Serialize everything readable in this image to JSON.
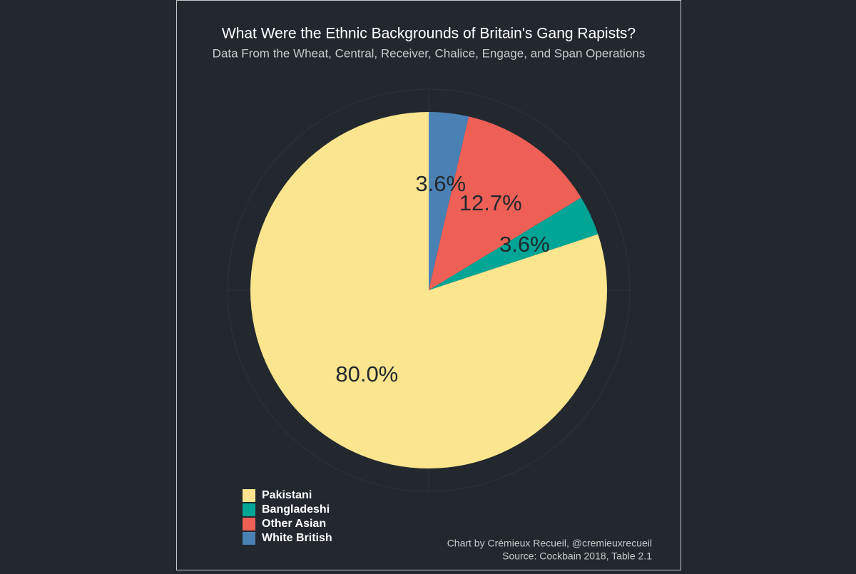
{
  "chart_data": {
    "type": "pie",
    "title": "What Were the Ethnic Backgrounds of Britain's Gang Rapists?",
    "subtitle": "Data From the Wheat, Central, Receiver, Chalice, Engage, and Span Operations",
    "categories": [
      "Pakistani",
      "Bangladeshi",
      "Other Asian",
      "White British"
    ],
    "values": [
      80.0,
      3.6,
      12.7,
      3.6
    ],
    "value_labels": [
      "80.0%",
      "3.6%",
      "12.7%",
      "3.6%"
    ],
    "colors": [
      "#fbe58e",
      "#00a595",
      "#ee6055",
      "#4a81b4"
    ],
    "legend": "bottom-left",
    "caption": [
      "Chart by Crémieux Recueil, @cremieuxrecueil",
      "Source: Cockbain 2018, Table 2.1"
    ]
  }
}
